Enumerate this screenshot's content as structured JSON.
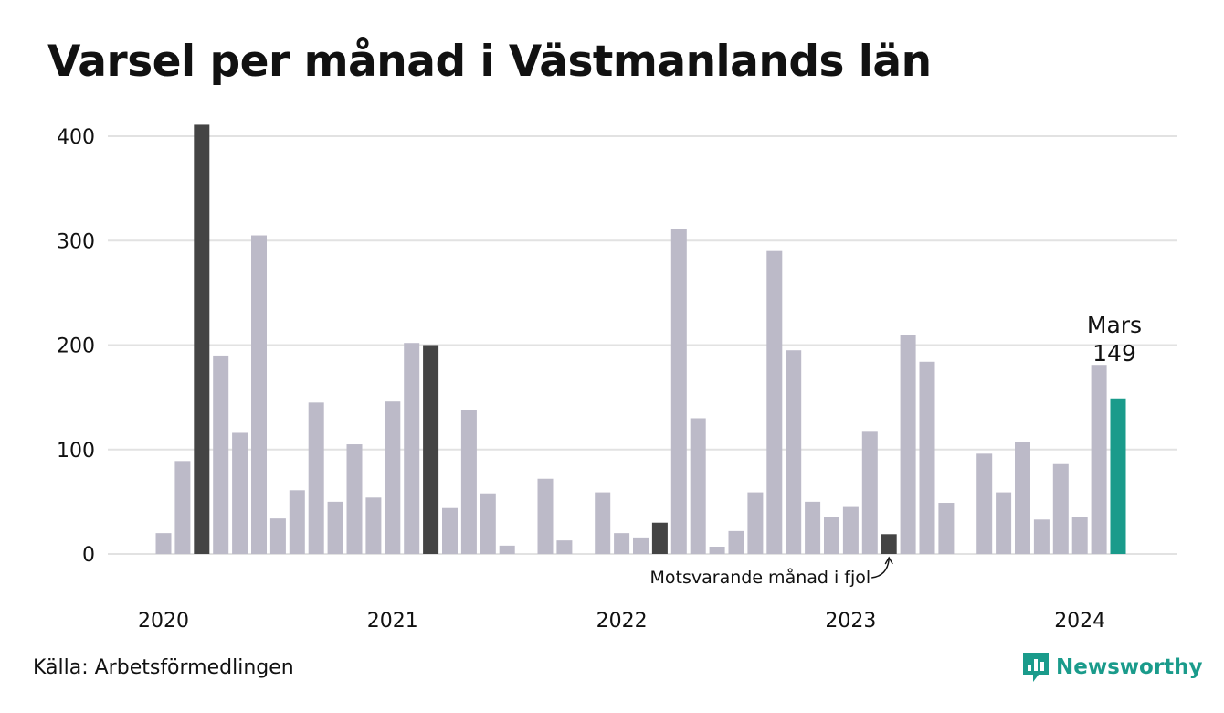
{
  "title": "Varsel per månad i Västmanlands län",
  "source": "Källa: Arbetsförmedlingen",
  "brand": {
    "name": "Newsworthy",
    "icon": "newsworthy-logo-icon"
  },
  "colors": {
    "bar": "#bcbac8",
    "comparison": "#444444",
    "highlight": "#1a9b8b",
    "grid": "#e2e2e2",
    "text": "#111111"
  },
  "chart_data": {
    "type": "bar",
    "title": "Varsel per månad i Västmanlands län",
    "xlabel": "",
    "ylabel": "",
    "ylim": [
      0,
      420
    ],
    "yticks": [
      0,
      100,
      200,
      300,
      400
    ],
    "grid": true,
    "year_labels": [
      {
        "label": "2020",
        "index": 0
      },
      {
        "label": "2021",
        "index": 12
      },
      {
        "label": "2022",
        "index": 24
      },
      {
        "label": "2023",
        "index": 36
      },
      {
        "label": "2024",
        "index": 48
      }
    ],
    "categories": [
      "2020-01",
      "2020-02",
      "2020-03",
      "2020-04",
      "2020-05",
      "2020-06",
      "2020-07",
      "2020-08",
      "2020-09",
      "2020-10",
      "2020-11",
      "2020-12",
      "2021-01",
      "2021-02",
      "2021-03",
      "2021-04",
      "2021-05",
      "2021-06",
      "2021-07",
      "2021-08",
      "2021-09",
      "2021-10",
      "2021-11",
      "2021-12",
      "2022-01",
      "2022-02",
      "2022-03",
      "2022-04",
      "2022-05",
      "2022-06",
      "2022-07",
      "2022-08",
      "2022-09",
      "2022-10",
      "2022-11",
      "2022-12",
      "2023-01",
      "2023-02",
      "2023-03",
      "2023-04",
      "2023-05",
      "2023-06",
      "2023-07",
      "2023-08",
      "2023-09",
      "2023-10",
      "2023-11",
      "2023-12",
      "2024-01",
      "2024-02",
      "2024-03"
    ],
    "values": [
      20,
      89,
      411,
      190,
      116,
      305,
      34,
      61,
      145,
      50,
      105,
      54,
      146,
      202,
      200,
      44,
      138,
      58,
      8,
      0,
      72,
      13,
      0,
      59,
      20,
      15,
      30,
      311,
      130,
      7,
      22,
      59,
      290,
      195,
      50,
      35,
      45,
      117,
      19,
      210,
      184,
      49,
      0,
      96,
      59,
      107,
      33,
      86,
      35,
      181,
      149
    ],
    "comparison_indices": [
      2,
      14,
      26,
      38
    ],
    "highlight_index": 50,
    "annotations": {
      "highlight_month": "Mars",
      "highlight_value": "149",
      "comparison_note": "Motsvarande månad i fjol"
    }
  }
}
